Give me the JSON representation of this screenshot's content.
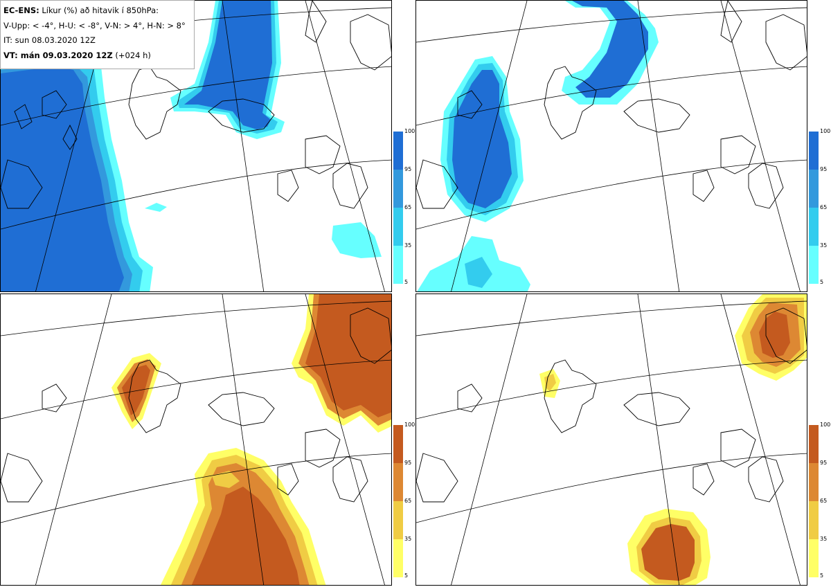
{
  "header": {
    "line1_bold": "EC-ENS:",
    "line1_rest": "Líkur (%) að hitavik í 850hPa:",
    "line2": "V-Upp: < -4°, H-U: < -8°, V-N: > 4°, H-N: > 8°",
    "line3": "IT: sun 08.03.2020 12Z",
    "line4_bold": "VT: mán 09.03.2020 12Z",
    "line4_rest": "(+024 h)"
  },
  "colorbar_labels": [
    "100",
    "95",
    "65",
    "35",
    "5"
  ],
  "colors": {
    "cold": [
      "#66ffff",
      "#33ccee",
      "#3399dd",
      "#1f6ed4"
    ],
    "warm": [
      "#ffff66",
      "#f0cc44",
      "#dd8833",
      "#c45a1f"
    ],
    "coast": "#000000",
    "grid": "#000000"
  },
  "panels": [
    {
      "name": "cold-anomaly-probability-panel",
      "palette": "cold"
    },
    {
      "name": "strong-cold-anomaly-probability-panel",
      "palette": "cold"
    },
    {
      "name": "warm-anomaly-probability-panel",
      "palette": "warm"
    },
    {
      "name": "strong-warm-anomaly-probability-panel",
      "palette": "warm"
    }
  ]
}
